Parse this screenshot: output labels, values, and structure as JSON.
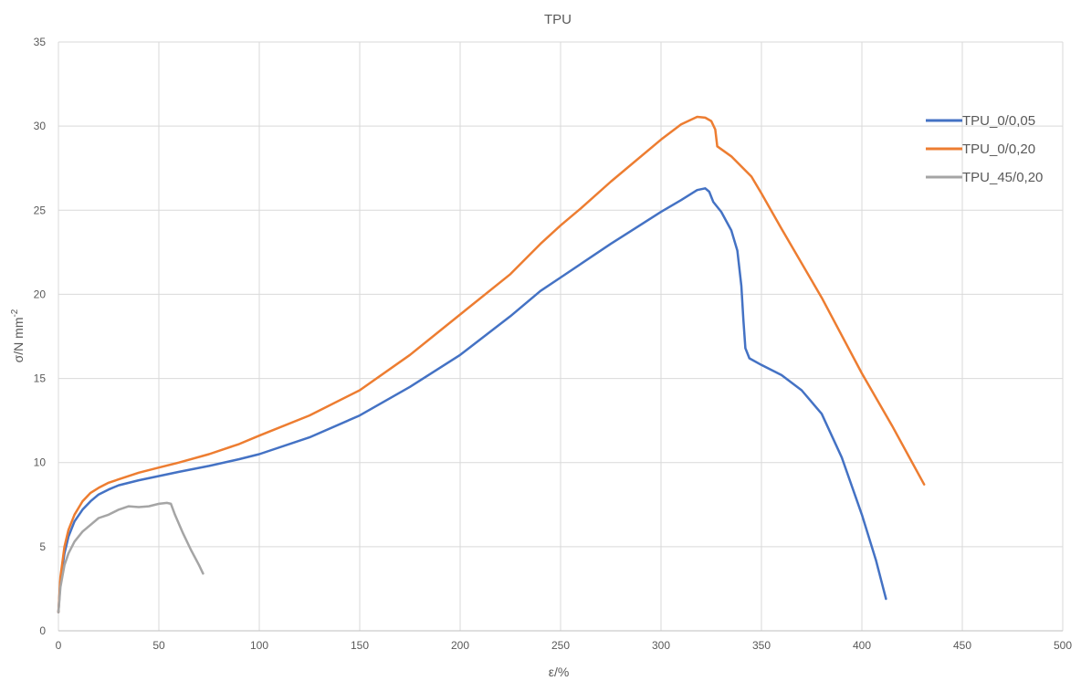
{
  "chart_data": {
    "type": "line",
    "title": "TPU",
    "xlabel": "ε/%",
    "ylabel_main": "σ/N mm",
    "ylabel_sup": "-2",
    "xlim": [
      0,
      500
    ],
    "ylim": [
      0,
      35
    ],
    "x_ticks": [
      "0",
      "50",
      "100",
      "150",
      "200",
      "250",
      "300",
      "350",
      "400",
      "450",
      "500"
    ],
    "y_ticks": [
      "0",
      "5",
      "10",
      "15",
      "20",
      "25",
      "30",
      "35"
    ],
    "grid": true,
    "legend_position": "right",
    "series": [
      {
        "name": "TPU_0/0,05",
        "color": "#4472C4",
        "points": [
          [
            0,
            1.1
          ],
          [
            1,
            3.0
          ],
          [
            3,
            4.6
          ],
          [
            5,
            5.6
          ],
          [
            8,
            6.5
          ],
          [
            12,
            7.2
          ],
          [
            16,
            7.7
          ],
          [
            20,
            8.1
          ],
          [
            25,
            8.4
          ],
          [
            30,
            8.65
          ],
          [
            40,
            8.95
          ],
          [
            50,
            9.2
          ],
          [
            60,
            9.45
          ],
          [
            75,
            9.8
          ],
          [
            90,
            10.2
          ],
          [
            100,
            10.5
          ],
          [
            125,
            11.5
          ],
          [
            150,
            12.8
          ],
          [
            175,
            14.5
          ],
          [
            200,
            16.4
          ],
          [
            225,
            18.7
          ],
          [
            240,
            20.2
          ],
          [
            250,
            21.0
          ],
          [
            275,
            23.0
          ],
          [
            300,
            24.9
          ],
          [
            310,
            25.6
          ],
          [
            318,
            26.2
          ],
          [
            322,
            26.3
          ],
          [
            324,
            26.1
          ],
          [
            326,
            25.5
          ],
          [
            330,
            24.9
          ],
          [
            335,
            23.8
          ],
          [
            338,
            22.6
          ],
          [
            340,
            20.5
          ],
          [
            341,
            18.5
          ],
          [
            342,
            16.8
          ],
          [
            344,
            16.2
          ],
          [
            350,
            15.8
          ],
          [
            360,
            15.2
          ],
          [
            370,
            14.3
          ],
          [
            380,
            12.9
          ],
          [
            390,
            10.3
          ],
          [
            400,
            6.9
          ],
          [
            407,
            4.2
          ],
          [
            412,
            1.9
          ]
        ]
      },
      {
        "name": "TPU_0/0,20",
        "color": "#ED7D31",
        "points": [
          [
            0,
            1.1
          ],
          [
            1,
            3.2
          ],
          [
            3,
            5.0
          ],
          [
            5,
            6.0
          ],
          [
            8,
            6.9
          ],
          [
            12,
            7.7
          ],
          [
            16,
            8.2
          ],
          [
            20,
            8.5
          ],
          [
            25,
            8.8
          ],
          [
            30,
            9.0
          ],
          [
            40,
            9.4
          ],
          [
            50,
            9.7
          ],
          [
            60,
            10.0
          ],
          [
            75,
            10.5
          ],
          [
            90,
            11.1
          ],
          [
            100,
            11.6
          ],
          [
            125,
            12.8
          ],
          [
            150,
            14.3
          ],
          [
            175,
            16.4
          ],
          [
            200,
            18.8
          ],
          [
            225,
            21.2
          ],
          [
            240,
            23.0
          ],
          [
            250,
            24.1
          ],
          [
            260,
            25.1
          ],
          [
            275,
            26.7
          ],
          [
            300,
            29.2
          ],
          [
            310,
            30.1
          ],
          [
            318,
            30.55
          ],
          [
            322,
            30.5
          ],
          [
            325,
            30.3
          ],
          [
            327,
            29.8
          ],
          [
            328,
            28.8
          ],
          [
            335,
            28.2
          ],
          [
            345,
            27.0
          ],
          [
            350,
            26.0
          ],
          [
            360,
            23.9
          ],
          [
            380,
            19.8
          ],
          [
            400,
            15.3
          ],
          [
            415,
            12.2
          ],
          [
            431,
            8.7
          ]
        ]
      },
      {
        "name": "TPU_45/0,20",
        "color": "#A5A5A5",
        "points": [
          [
            0,
            1.1
          ],
          [
            1,
            2.6
          ],
          [
            3,
            3.9
          ],
          [
            5,
            4.6
          ],
          [
            8,
            5.3
          ],
          [
            12,
            5.9
          ],
          [
            16,
            6.3
          ],
          [
            20,
            6.7
          ],
          [
            25,
            6.9
          ],
          [
            30,
            7.2
          ],
          [
            35,
            7.4
          ],
          [
            40,
            7.35
          ],
          [
            45,
            7.4
          ],
          [
            50,
            7.55
          ],
          [
            54,
            7.6
          ],
          [
            56,
            7.55
          ],
          [
            58,
            6.9
          ],
          [
            62,
            5.8
          ],
          [
            66,
            4.8
          ],
          [
            70,
            3.9
          ],
          [
            72,
            3.4
          ]
        ]
      }
    ]
  }
}
